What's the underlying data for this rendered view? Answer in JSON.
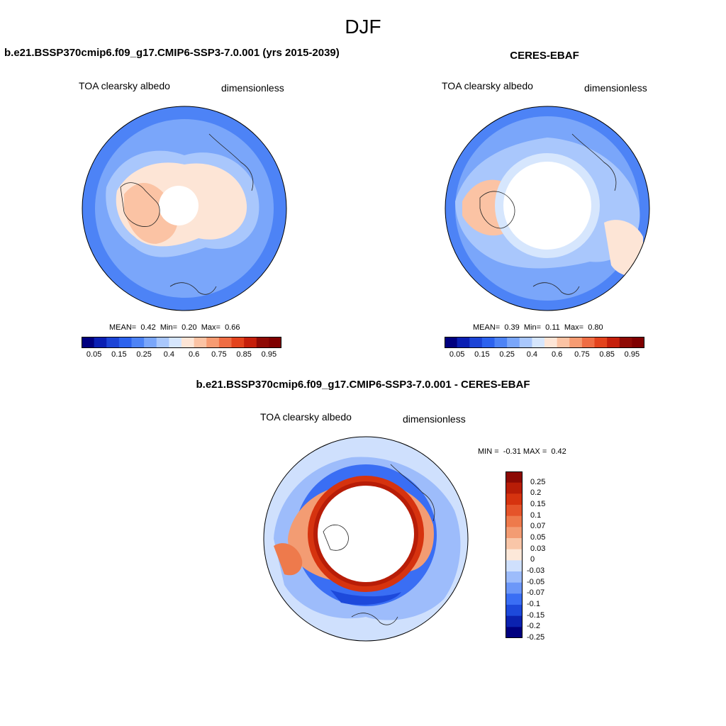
{
  "figure": {
    "title": "DJF",
    "colors": {
      "seq": [
        "#00007f",
        "#0a1fb3",
        "#1c44d6",
        "#2c62ee",
        "#4d83f6",
        "#7aa6fa",
        "#a9c7fc",
        "#d6e6fd",
        "#fde5d6",
        "#fbc3a4",
        "#f69b72",
        "#ef6d44",
        "#e3431d",
        "#c51f0b",
        "#8f0a05",
        "#7f0000"
      ],
      "diff": [
        "#00007f",
        "#0b22b0",
        "#1d49db",
        "#3a6ef4",
        "#6c97f8",
        "#9dbcfb",
        "#cfe0fd",
        "#fde8d9",
        "#f9c6a8",
        "#f39c73",
        "#ee7a4c",
        "#e5542a",
        "#d6330f",
        "#b81d07",
        "#8c0a04"
      ]
    },
    "panels": [
      {
        "title": "b.e21.BSSP370cmip6.f09_g17.CMIP6-SSP3-7.0.001 (yrs 2015-2039)",
        "variable": "TOA clearsky albedo",
        "units": "dimensionless",
        "stats": {
          "mean_label": "MEAN=",
          "mean": "0.42",
          "min_label": "Min=",
          "min": "0.20",
          "max_label": "Max=",
          "max": "0.66"
        },
        "colorbar_labels": [
          "0.05",
          "0.15",
          "0.25",
          "0.4",
          "0.6",
          "0.75",
          "0.85",
          "0.95"
        ]
      },
      {
        "title": "CERES-EBAF",
        "variable": "TOA clearsky albedo",
        "units": "dimensionless",
        "stats": {
          "mean_label": "MEAN=",
          "mean": "0.39",
          "min_label": "Min=",
          "min": "0.11",
          "max_label": "Max=",
          "max": "0.80"
        },
        "colorbar_labels": [
          "0.05",
          "0.15",
          "0.25",
          "0.4",
          "0.6",
          "0.75",
          "0.85",
          "0.95"
        ]
      },
      {
        "title": "b.e21.BSSP370cmip6.f09_g17.CMIP6-SSP3-7.0.001 - CERES-EBAF",
        "variable": "TOA clearsky albedo",
        "units": "dimensionless",
        "stats": {
          "min_label": "MIN =",
          "min": "-0.31",
          "max_label": "MAX =",
          "max": "0.42"
        },
        "colorbar_labels": [
          "0.25",
          "0.2",
          "0.15",
          "0.1",
          "0.07",
          "0.05",
          "0.03",
          "0",
          "-0.03",
          "-0.05",
          "-0.07",
          "-0.1",
          "-0.15",
          "-0.2",
          "-0.25"
        ]
      }
    ]
  }
}
